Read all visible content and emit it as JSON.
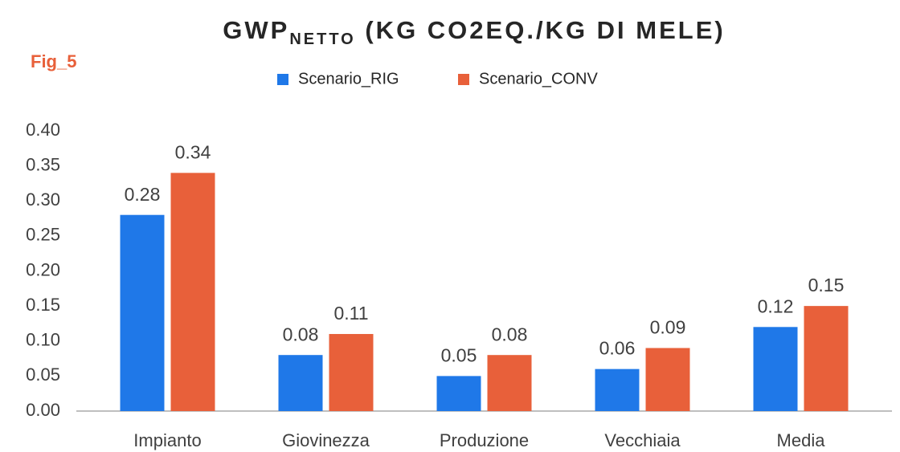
{
  "chart_data": {
    "type": "bar",
    "title": [
      "GWP",
      "NETTO",
      " (KG CO2EQ./KG DI MELE)"
    ],
    "annotation": "Fig_5",
    "categories": [
      "Impianto",
      "Giovinezza",
      "Produzione",
      "Vecchiaia",
      "Media"
    ],
    "series": [
      {
        "name": "Scenario_RIG",
        "color": "#1f78e8",
        "values": [
          0.28,
          0.08,
          0.05,
          0.06,
          0.12
        ]
      },
      {
        "name": "Scenario_CONV",
        "color": "#e8603a",
        "values": [
          0.34,
          0.11,
          0.08,
          0.09,
          0.15
        ]
      }
    ],
    "ylim": [
      0,
      0.4
    ],
    "yticks": [
      {
        "value": 0,
        "label": "0.00"
      },
      0.05,
      {
        "value": 0.1,
        "label": "0.10"
      },
      0.15,
      {
        "value": 0.2,
        "label": "0.20"
      },
      0.25,
      {
        "value": 0.3,
        "label": "0.30"
      },
      0.35,
      {
        "value": 0.4,
        "label": "0.40"
      }
    ],
    "grid": false,
    "legend": "top"
  }
}
